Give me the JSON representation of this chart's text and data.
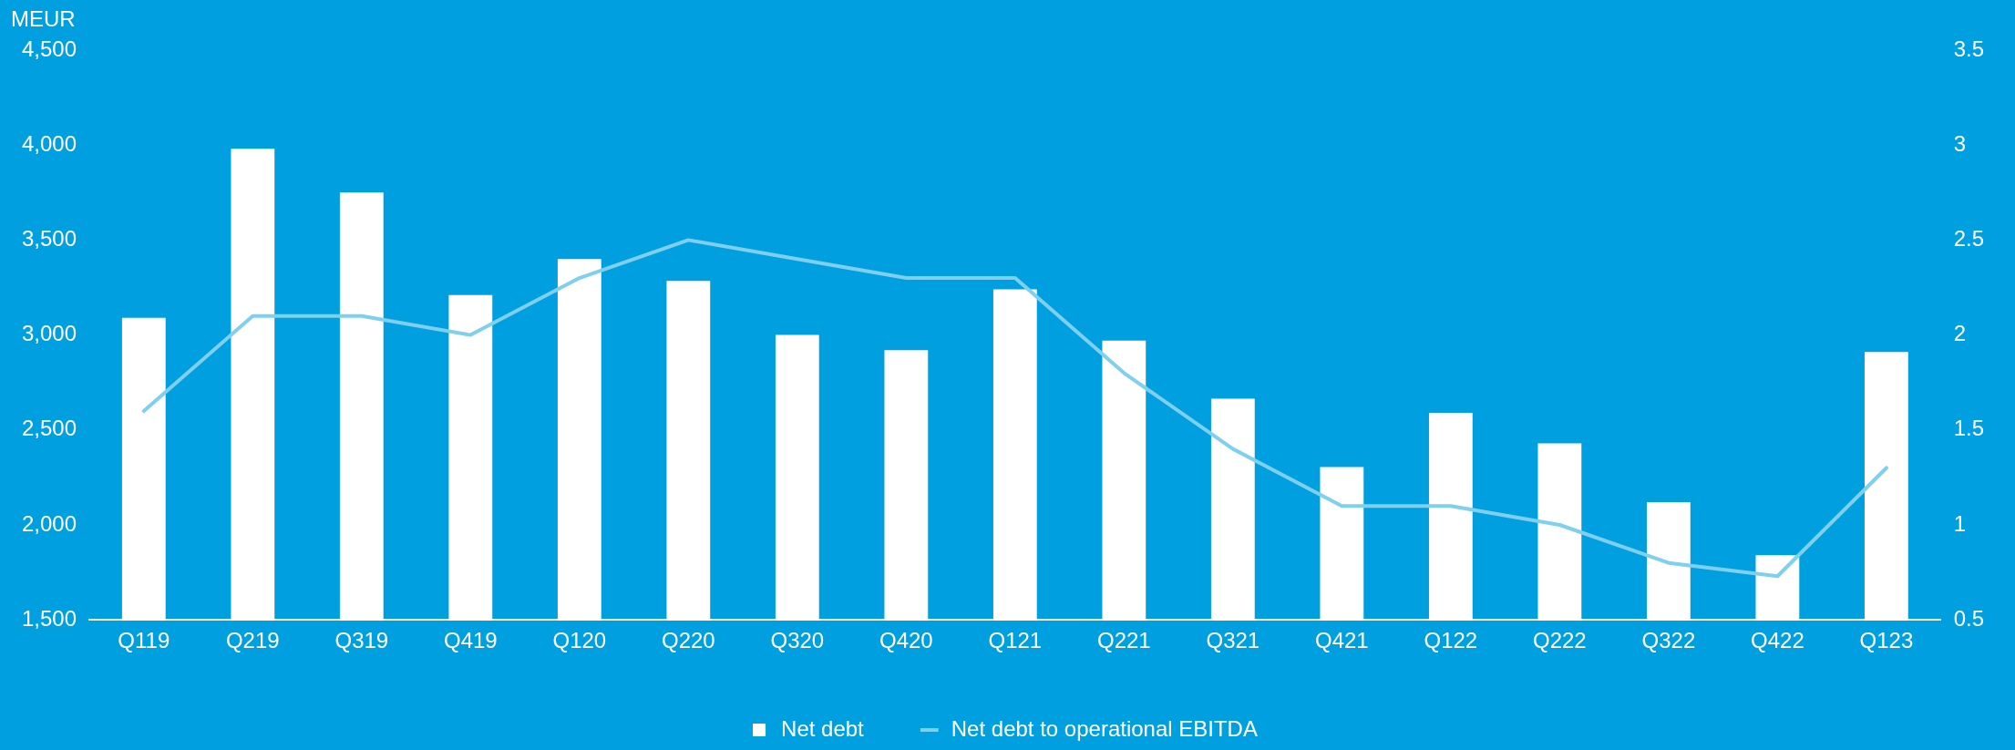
{
  "chart_data": {
    "type": "bar",
    "ylabel": "MEUR",
    "categories": [
      "Q119",
      "Q219",
      "Q319",
      "Q419",
      "Q120",
      "Q220",
      "Q320",
      "Q420",
      "Q121",
      "Q221",
      "Q321",
      "Q421",
      "Q122",
      "Q222",
      "Q322",
      "Q422",
      "Q123"
    ],
    "series": [
      {
        "name": "Net debt",
        "color": "#ffffff",
        "values": [
          3090,
          3980,
          3750,
          3210,
          3400,
          3285,
          3000,
          2920,
          3240,
          2970,
          2665,
          2305,
          2590,
          2430,
          2120,
          1840,
          2910
        ]
      },
      {
        "name": "Net debt to operational EBITDA",
        "type": "line",
        "axis": "y2",
        "color": "#7fcfee",
        "values": [
          1.6,
          2.1,
          2.1,
          2.0,
          2.3,
          2.5,
          2.4,
          2.3,
          2.3,
          1.8,
          1.4,
          1.1,
          1.1,
          1.0,
          0.8,
          0.73,
          1.3
        ]
      }
    ],
    "ylim": [
      1500,
      4500
    ],
    "yticks": [
      {
        "value": 1500,
        "label": "1,500"
      },
      {
        "value": 2000,
        "label": "2,000"
      },
      {
        "value": 2500,
        "label": "2,500"
      },
      {
        "value": 3000,
        "label": "3,000"
      },
      {
        "value": 3500,
        "label": "3,500"
      },
      {
        "value": 4000,
        "label": "4,000"
      },
      {
        "value": 4500,
        "label": "4,500"
      }
    ],
    "y2lim": [
      0.5,
      3.5
    ],
    "y2ticks": [
      0.5,
      1,
      1.5,
      2,
      2.5,
      3,
      3.5
    ],
    "grid": false,
    "legend": "bottom",
    "marker": "none",
    "line_style": "solid"
  }
}
